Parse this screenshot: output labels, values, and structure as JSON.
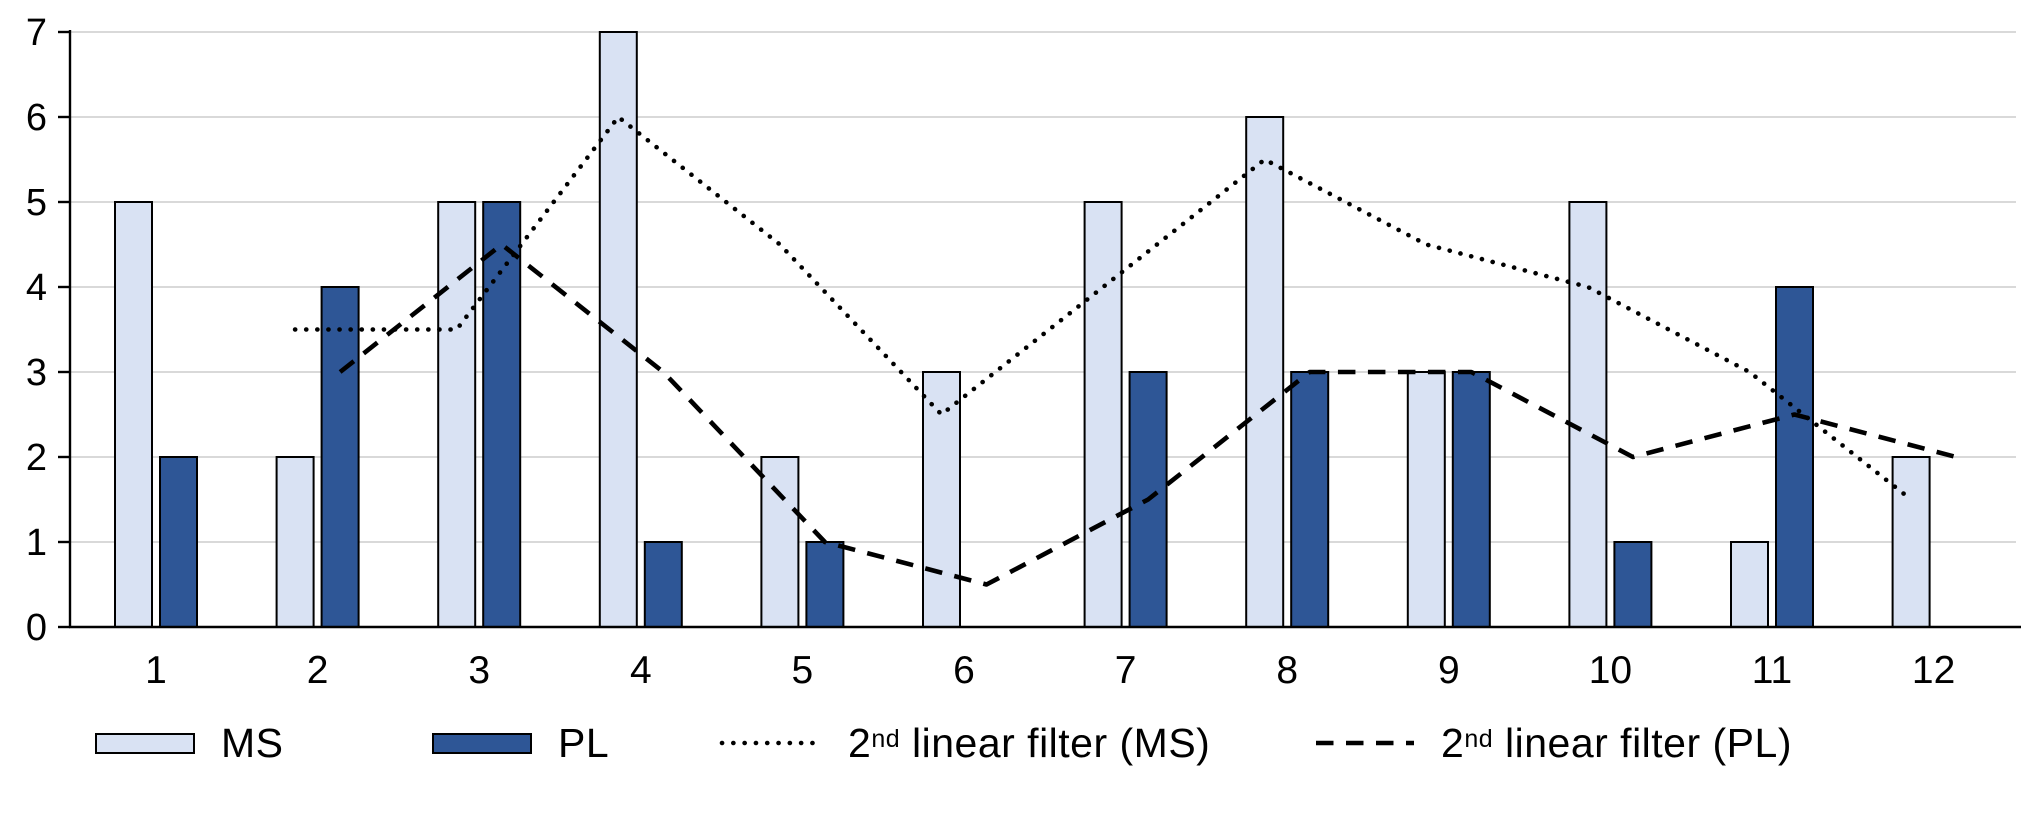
{
  "chart_data": {
    "type": "bar",
    "subtype": "clustered-bars-with-line-overlays",
    "title": "",
    "xlabel": "",
    "ylabel": "",
    "categories": [
      1,
      2,
      3,
      4,
      5,
      6,
      7,
      8,
      9,
      10,
      11,
      12
    ],
    "ylim": [
      0,
      7
    ],
    "yticks": [
      0,
      1,
      2,
      3,
      4,
      5,
      6,
      7
    ],
    "grid": "horizontal gridlines at every integer",
    "legend_position": "bottom",
    "series": [
      {
        "name": "MS",
        "type": "bar",
        "color": "#d9e2f3",
        "values": [
          5,
          2,
          5,
          7,
          2,
          3,
          5,
          6,
          3,
          5,
          1,
          2
        ]
      },
      {
        "name": "PL",
        "type": "bar",
        "color": "#2e5696",
        "values": [
          2,
          4,
          5,
          1,
          1,
          0,
          3,
          3,
          3,
          1,
          4,
          0
        ]
      },
      {
        "name": "2nd linear filter (MS)",
        "type": "line",
        "line_style": "dotted",
        "color": "#000000",
        "x": [
          2,
          3,
          4,
          5,
          6,
          7,
          8,
          9,
          10,
          11,
          12
        ],
        "values": [
          3.5,
          3.5,
          6,
          4.5,
          2.5,
          4,
          5.5,
          4.5,
          4,
          3,
          1.5
        ]
      },
      {
        "name": "2nd linear filter (PL)",
        "type": "line",
        "line_style": "dashed",
        "color": "#000000",
        "x": [
          2,
          3,
          4,
          5,
          6,
          7,
          8,
          9,
          10,
          11,
          12
        ],
        "values": [
          3,
          4.5,
          3,
          1,
          0.5,
          1.5,
          3,
          3,
          2,
          2.5,
          2
        ]
      }
    ]
  },
  "legend": {
    "items": [
      {
        "label": "MS",
        "swatch": "bar-light"
      },
      {
        "label": "PL",
        "swatch": "bar-dark"
      },
      {
        "pre": "2",
        "sup": "nd",
        "post": " linear filter (MS)",
        "swatch": "dotted-line"
      },
      {
        "pre": "2",
        "sup": "nd",
        "post": " linear filter (PL)",
        "swatch": "dashed-line"
      }
    ]
  },
  "colors": {
    "background": "#ffffff",
    "ms_bar": "#d9e2f3",
    "pl_bar": "#2e5696",
    "bar_border": "#000000",
    "line": "#000000",
    "axis": "#000000",
    "gridline": "#d9d9d9",
    "text": "#000000"
  }
}
